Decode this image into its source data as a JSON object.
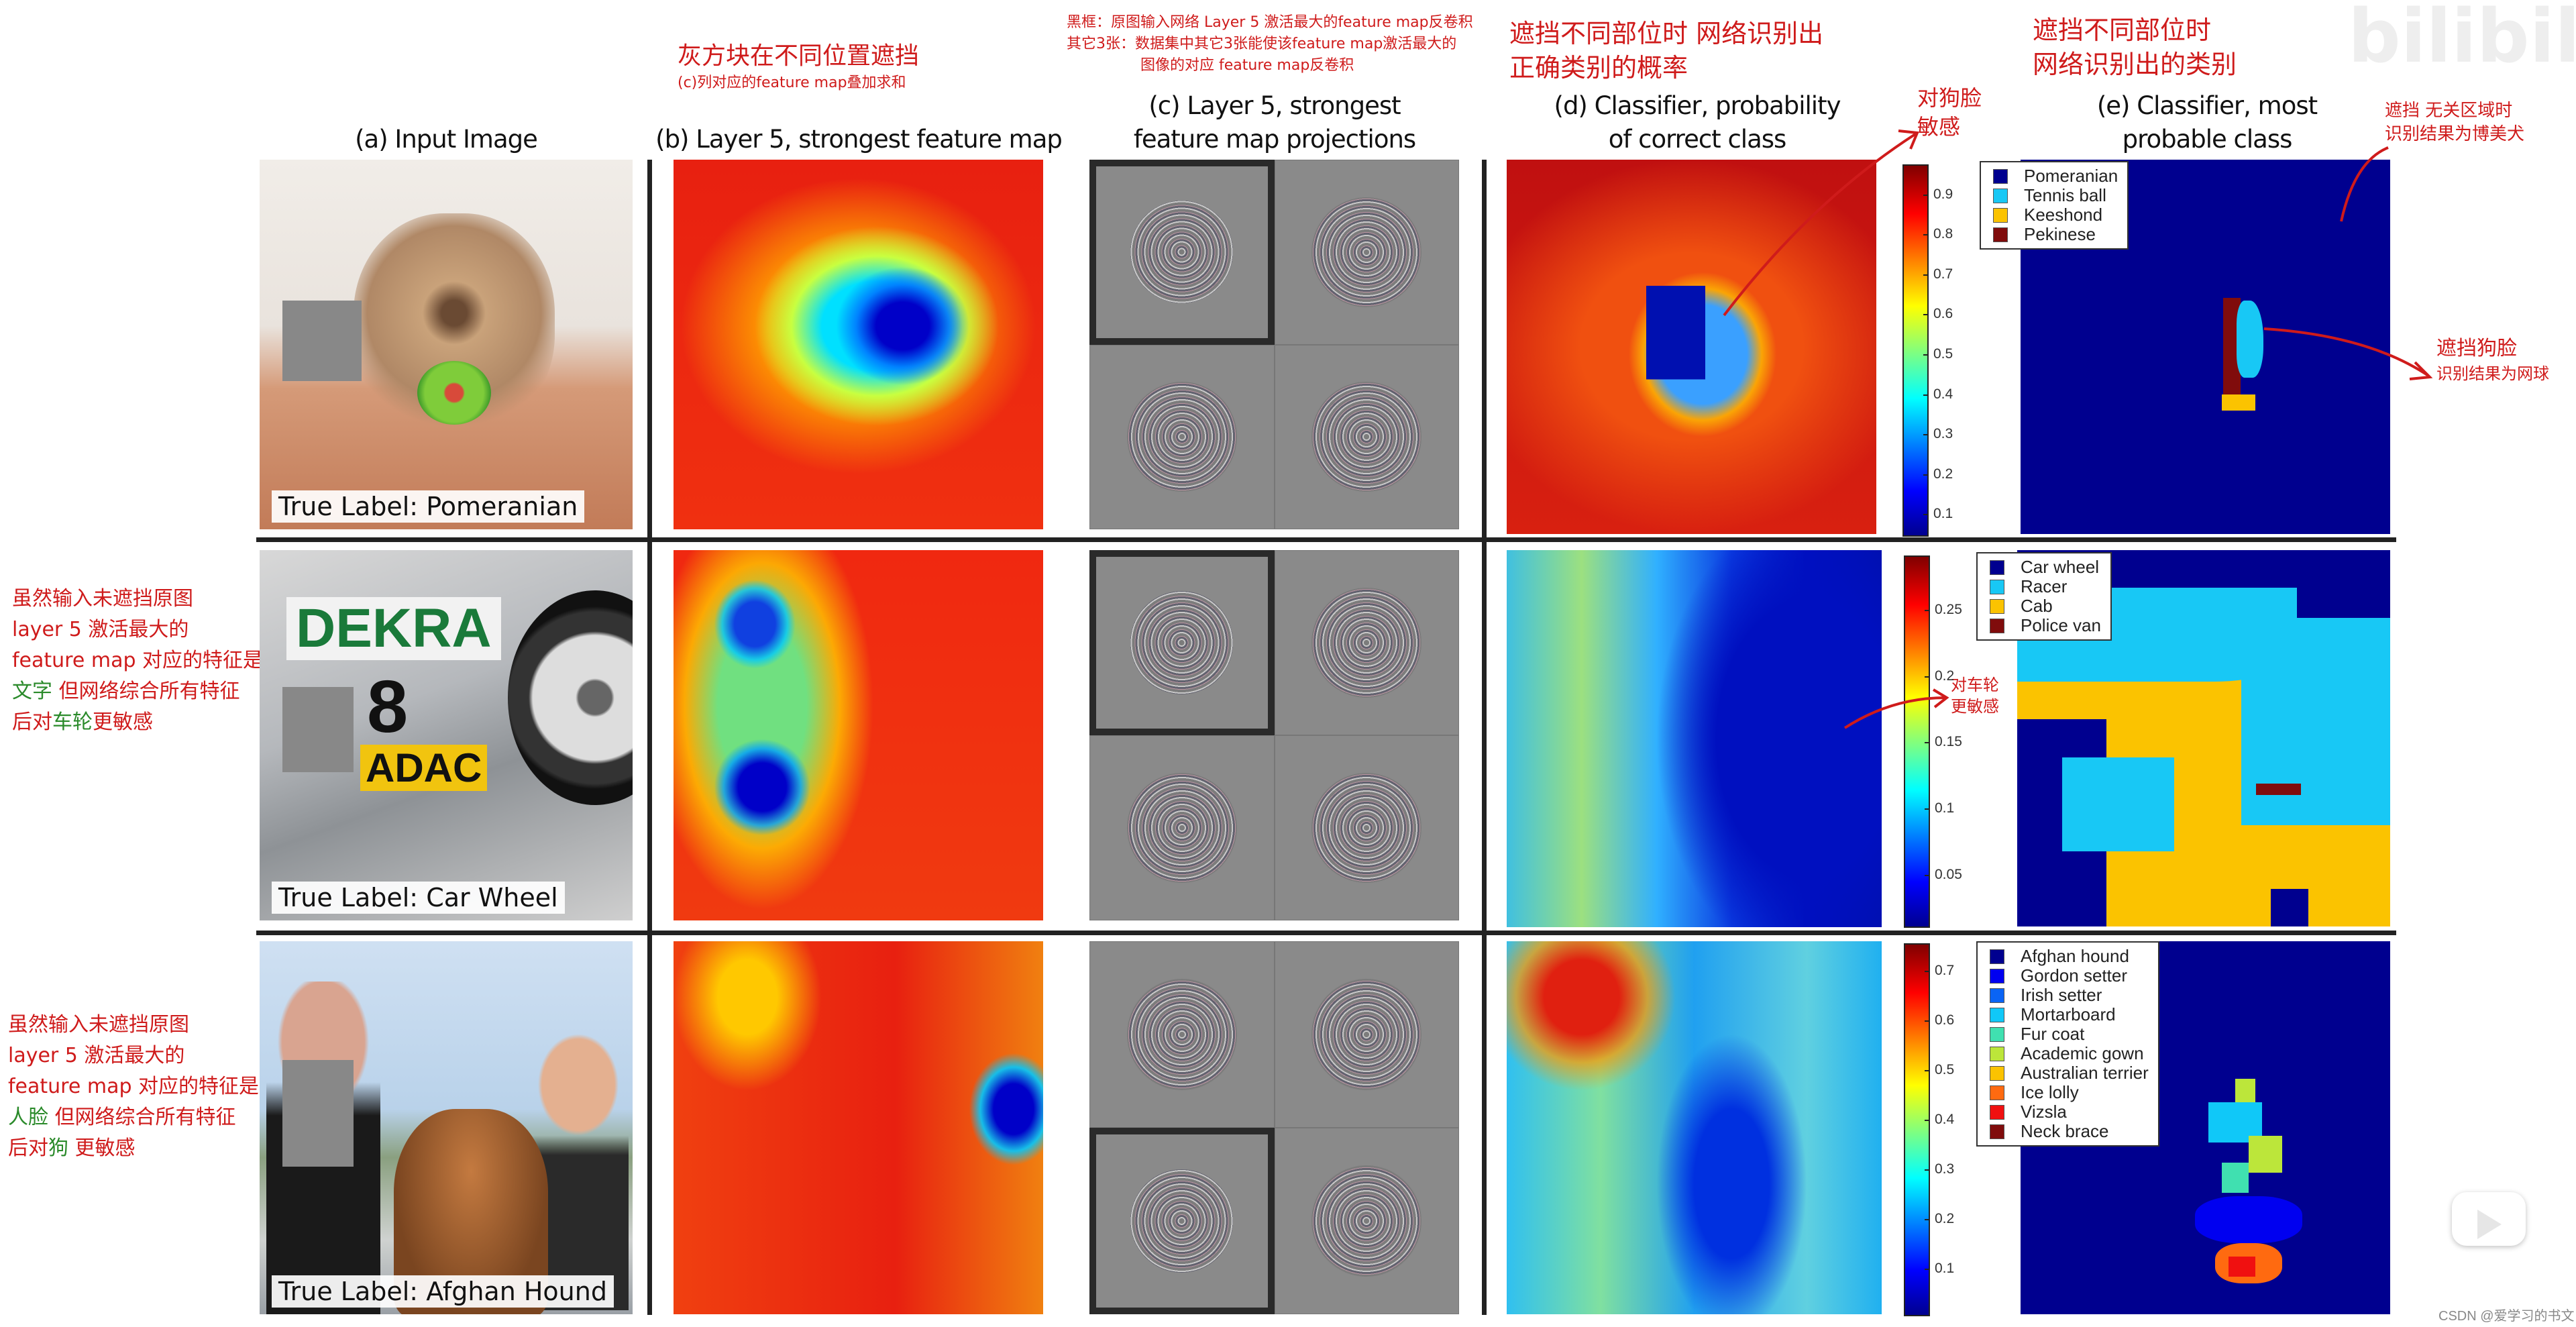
{
  "headers": {
    "a": "(a) Input Image",
    "b": "(b) Layer 5, strongest feature map",
    "c_line1": "(c) Layer 5, strongest",
    "c_line2": "feature map projections",
    "d_line1": "(d) Classifier, probability",
    "d_line2": "of correct class",
    "e_line1": "(e) Classifier, most",
    "e_line2": "probable class"
  },
  "rows": [
    {
      "true_label": "True Label: Pomeranian",
      "colorbar_ticks": [
        "0.9",
        "0.8",
        "0.7",
        "0.6",
        "0.5",
        "0.4",
        "0.3",
        "0.2",
        "0.1"
      ],
      "colorbar_range": [
        0.05,
        0.975
      ],
      "legend": [
        {
          "label": "Pomeranian",
          "color": "#00008f"
        },
        {
          "label": "Tennis ball",
          "color": "#18c8f5"
        },
        {
          "label": "Keeshond",
          "color": "#fbc300"
        },
        {
          "label": "Pekinese",
          "color": "#800c0c"
        }
      ]
    },
    {
      "true_label": "True Label: Car Wheel",
      "image_text": {
        "sign": "DEKRA",
        "number": "8",
        "sponsor": "ADAC"
      },
      "colorbar_ticks": [
        "0.25",
        "0.2",
        "0.15",
        "0.1",
        "0.05"
      ],
      "colorbar_range": [
        0.012,
        0.291
      ],
      "legend": [
        {
          "label": "Car wheel",
          "color": "#00008f"
        },
        {
          "label": "Racer",
          "color": "#18c8f5"
        },
        {
          "label": "Cab",
          "color": "#fbc300"
        },
        {
          "label": "Police van",
          "color": "#800c0c"
        }
      ]
    },
    {
      "true_label": "True Label: Afghan Hound",
      "colorbar_ticks": [
        "0.7",
        "0.6",
        "0.5",
        "0.4",
        "0.3",
        "0.2",
        "0.1"
      ],
      "colorbar_range": [
        0.009,
        0.756
      ],
      "legend": [
        {
          "label": "Afghan hound",
          "color": "#00008f"
        },
        {
          "label": "Gordon setter",
          "color": "#0000f0"
        },
        {
          "label": "Irish setter",
          "color": "#0a64f5"
        },
        {
          "label": "Mortarboard",
          "color": "#10c8f8"
        },
        {
          "label": "Fur coat",
          "color": "#40e0b0"
        },
        {
          "label": "Academic gown",
          "color": "#bce63a"
        },
        {
          "label": "Australian terrier",
          "color": "#fbc300"
        },
        {
          "label": "Ice lolly",
          "color": "#ff6a10"
        },
        {
          "label": "Vizsla",
          "color": "#f01010"
        },
        {
          "label": "Neck brace",
          "color": "#800c0c"
        }
      ]
    }
  ],
  "annotations": {
    "b_note": [
      "灰方块在不同位置遮挡",
      "(c)列对应的feature map叠加求和"
    ],
    "c_note": [
      "黑框：原图输入网络 Layer 5 激活最大的feature map反卷积",
      "其它3张：数据集中其它3张能使该feature map激活最大的",
      "图像的对应 feature map反卷积"
    ],
    "d_note": [
      "遮挡不同部位时 网络识别出",
      "正确类别的概率"
    ],
    "e_note": [
      "遮挡不同部位时",
      "网络识别出的类别"
    ],
    "dog_face": [
      "对狗脸",
      "敏感"
    ],
    "irrelevant": [
      "遮挡 无关区域时",
      "识别结果为博美犬"
    ],
    "occlude_face": [
      "遮挡狗脸",
      "识别结果为网球"
    ],
    "wheel": [
      "对车轮",
      "更敏感"
    ],
    "left_row2": {
      "lines": [
        "虽然输入未遮挡原图",
        "layer 5 激活最大的",
        "feature map 对应的特征是"
      ],
      "green": "文字",
      "rest": " 但网络综合所有特征",
      "last_a": "后对",
      "last_green": "车轮",
      "last_b": "更敏感"
    },
    "left_row3": {
      "lines": [
        "虽然输入未遮挡原图",
        "layer 5 激活最大的",
        "feature map 对应的特征是"
      ],
      "green": "人脸",
      "rest": " 但网络综合所有特征",
      "last_a": "后对",
      "last_green": "狗",
      "last_b": "  更敏感"
    }
  },
  "watermark": {
    "logo": "bilibili",
    "credit": "CSDN @爱学习的书文"
  },
  "icons": {
    "play": "bilibili-tv-play-icon"
  },
  "colors": {
    "annotation": "#cf1b1b",
    "annotation_green": "#2a8a2a",
    "occluder": "#888888"
  }
}
